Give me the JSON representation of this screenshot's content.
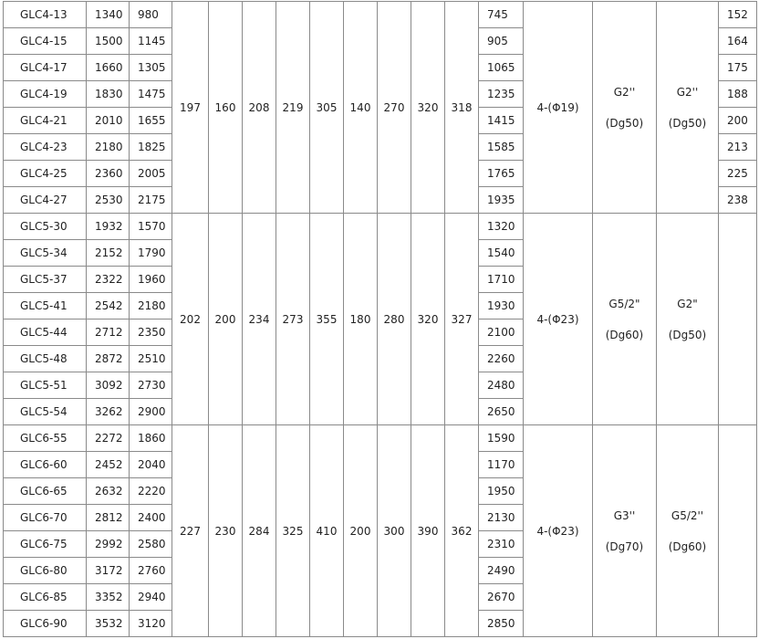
{
  "groups": [
    {
      "rows": [
        [
          "GLC4-13",
          "1340",
          "980",
          "745",
          "152"
        ],
        [
          "GLC4-15",
          "1500",
          "1145",
          "905",
          "164"
        ],
        [
          "GLC4-17",
          "1660",
          "1305",
          "1065",
          "175"
        ],
        [
          "GLC4-19",
          "1830",
          "1475",
          "1235",
          "188"
        ],
        [
          "GLC4-21",
          "2010",
          "1655",
          "1415",
          "200"
        ],
        [
          "GLC4-23",
          "2180",
          "1825",
          "1585",
          "213"
        ],
        [
          "GLC4-25",
          "2360",
          "2005",
          "1765",
          "225"
        ],
        [
          "GLC4-27",
          "2530",
          "2175",
          "1935",
          "238"
        ]
      ],
      "shared": [
        "197",
        "160",
        "208",
        "219",
        "305",
        "140",
        "270",
        "320",
        "318"
      ],
      "bolts": "4-(Φ19)",
      "inlet": [
        "G2''",
        "(Dg50)"
      ],
      "outlet": [
        "G2''",
        "(Dg50)"
      ],
      "last_merged": false
    },
    {
      "rows": [
        [
          "GLC5-30",
          "1932",
          "1570",
          "1320"
        ],
        [
          "GLC5-34",
          "2152",
          "1790",
          "1540"
        ],
        [
          "GLC5-37",
          "2322",
          "1960",
          "1710"
        ],
        [
          "GLC5-41",
          "2542",
          "2180",
          "1930"
        ],
        [
          "GLC5-44",
          "2712",
          "2350",
          "2100"
        ],
        [
          "GLC5-48",
          "2872",
          "2510",
          "2260"
        ],
        [
          "GLC5-51",
          "3092",
          "2730",
          "2480"
        ],
        [
          "GLC5-54",
          "3262",
          "2900",
          "2650"
        ]
      ],
      "shared": [
        "202",
        "200",
        "234",
        "273",
        "355",
        "180",
        "280",
        "320",
        "327"
      ],
      "bolts": "4-(Φ23)",
      "inlet": [
        "G5/2\"",
        "(Dg60)"
      ],
      "outlet": [
        "G2\"",
        "(Dg50)"
      ],
      "last_merged": true
    },
    {
      "rows": [
        [
          "GLC6-55",
          "2272",
          "1860",
          "1590"
        ],
        [
          "GLC6-60",
          "2452",
          "2040",
          "1170"
        ],
        [
          "GLC6-65",
          "2632",
          "2220",
          "1950"
        ],
        [
          "GLC6-70",
          "2812",
          "2400",
          "2130"
        ],
        [
          "GLC6-75",
          "2992",
          "2580",
          "2310"
        ],
        [
          "GLC6-80",
          "3172",
          "2760",
          "2490"
        ],
        [
          "GLC6-85",
          "3352",
          "2940",
          "2670"
        ],
        [
          "GLC6-90",
          "3532",
          "3120",
          "2850"
        ]
      ],
      "shared": [
        "227",
        "230",
        "284",
        "325",
        "410",
        "200",
        "300",
        "390",
        "362"
      ],
      "bolts": "4-(Φ23)",
      "inlet": [
        "G3''",
        "(Dg70)"
      ],
      "outlet": [
        "G5/2''",
        "(Dg60)"
      ],
      "last_merged": true
    }
  ]
}
